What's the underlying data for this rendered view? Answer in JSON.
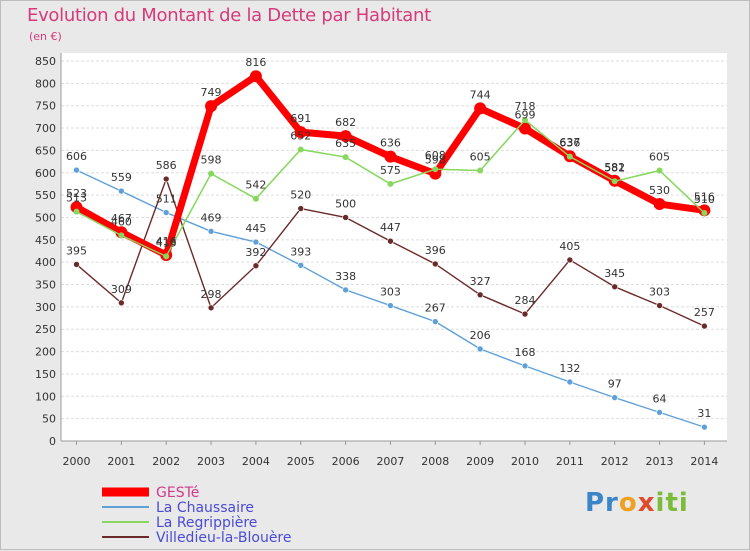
{
  "header": {
    "title": "Evolution du Montant de la Dette par Habitant",
    "unit": "(en €)"
  },
  "brand": {
    "logo_parts": [
      "Pr",
      "o",
      "x",
      "iti"
    ]
  },
  "chart_data": {
    "type": "line",
    "title": "Evolution du Montant de la Dette par Habitant",
    "subtitle": "(en €)",
    "xlabel": "",
    "ylabel": "",
    "x": [
      2000,
      2001,
      2002,
      2003,
      2004,
      2005,
      2006,
      2007,
      2008,
      2009,
      2010,
      2011,
      2012,
      2013,
      2014
    ],
    "ylim": [
      0,
      850
    ],
    "yticks": [
      0,
      50,
      100,
      150,
      200,
      250,
      300,
      350,
      400,
      450,
      500,
      550,
      600,
      650,
      700,
      750,
      800,
      850
    ],
    "grid": "horizontal",
    "legend_position": "bottom-left",
    "series": [
      {
        "name": "GESTé",
        "color": "#ff0000",
        "values": [
          523,
          467,
          416,
          749,
          816,
          691,
          682,
          636,
          598,
          744,
          699,
          637,
          582,
          530,
          516
        ]
      },
      {
        "name": "La Chaussaire",
        "color": "#5ea0d8",
        "values": [
          606,
          559,
          511,
          469,
          445,
          393,
          338,
          303,
          267,
          206,
          168,
          132,
          97,
          64,
          31
        ]
      },
      {
        "name": "La Regrippière",
        "color": "#88d860",
        "values": [
          513,
          460,
          413,
          598,
          542,
          652,
          635,
          575,
          608,
          605,
          718,
          636,
          581,
          605,
          510
        ]
      },
      {
        "name": "Villedieu-la-Blouère",
        "color": "#6b2a2a",
        "values": [
          395,
          309,
          586,
          298,
          392,
          520,
          500,
          447,
          396,
          327,
          284,
          405,
          345,
          303,
          257
        ]
      }
    ]
  }
}
